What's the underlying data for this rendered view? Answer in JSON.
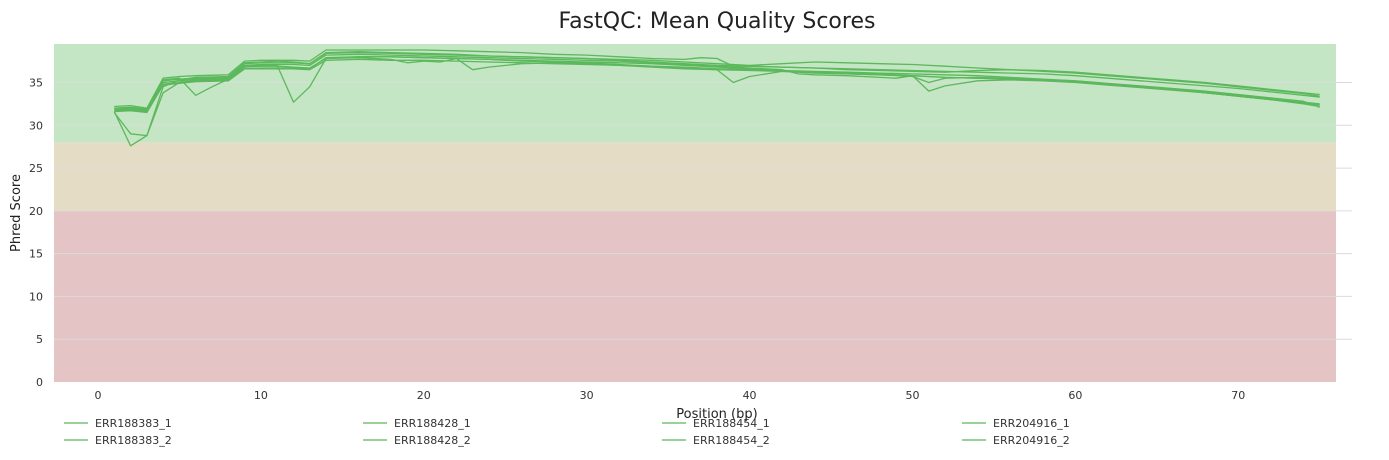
{
  "chart_data": {
    "type": "line",
    "title": "FastQC: Mean Quality Scores",
    "xlabel": "Position (bp)",
    "ylabel": "Phred Score",
    "xlim": [
      -2.7,
      76
    ],
    "ylim": [
      0,
      39.5
    ],
    "xticks": [
      0,
      10,
      20,
      30,
      40,
      50,
      60,
      70
    ],
    "yticks": [
      0,
      5,
      10,
      15,
      20,
      25,
      30,
      35
    ],
    "grid": true,
    "legend_position": "bottom",
    "line_color": "#5cb85c",
    "bands": [
      {
        "from": 28,
        "to": 39.5,
        "color": "#c4e6c4"
      },
      {
        "from": 20,
        "to": 28,
        "color": "#e4dcc4"
      },
      {
        "from": 0,
        "to": 20,
        "color": "#e4c4c4"
      }
    ],
    "series": [
      {
        "name": "ERR188383_1",
        "x": [
          1,
          2,
          3,
          4,
          5,
          6,
          8,
          9,
          10,
          11,
          12,
          13,
          14,
          16,
          18,
          20,
          22,
          24,
          26,
          28,
          30,
          32,
          34,
          36,
          38,
          40,
          42,
          44,
          46,
          48,
          50,
          52,
          54,
          56,
          58,
          60,
          62,
          64,
          66,
          68,
          70,
          72,
          74,
          75
        ],
        "y": [
          31.5,
          29.0,
          28.8,
          34.5,
          35.3,
          35.6,
          35.7,
          37.3,
          37.4,
          37.5,
          37.4,
          37.2,
          38.5,
          38.6,
          38.5,
          38.4,
          38.3,
          38.1,
          38.0,
          37.9,
          37.8,
          37.6,
          37.4,
          37.2,
          37.0,
          36.9,
          36.8,
          36.7,
          36.6,
          36.5,
          36.4,
          36.3,
          36.2,
          36.1,
          36.0,
          35.8,
          35.5,
          35.2,
          34.9,
          34.6,
          34.3,
          33.9,
          33.5,
          33.3
        ]
      },
      {
        "name": "ERR188383_2",
        "x": [
          1,
          2,
          3,
          4,
          5,
          6,
          8,
          9,
          10,
          11,
          12,
          13,
          14,
          16,
          18,
          20,
          22,
          24,
          26,
          28,
          30,
          32,
          34,
          36,
          38,
          39,
          40,
          42,
          44,
          46,
          48,
          50,
          52,
          54,
          56,
          58,
          60,
          62,
          64,
          66,
          68,
          70,
          72,
          74,
          75
        ],
        "y": [
          31.6,
          27.6,
          28.8,
          33.8,
          35.0,
          35.3,
          35.4,
          36.8,
          36.9,
          36.9,
          36.8,
          36.7,
          37.8,
          38.0,
          38.0,
          37.9,
          37.8,
          37.7,
          37.5,
          37.4,
          37.3,
          37.1,
          36.9,
          36.7,
          36.5,
          35.0,
          35.7,
          36.3,
          36.2,
          36.1,
          36.0,
          35.8,
          35.6,
          35.5,
          35.4,
          35.3,
          35.1,
          34.8,
          34.5,
          34.2,
          33.8,
          33.4,
          33.0,
          32.6,
          32.4
        ]
      },
      {
        "name": "ERR188428_1",
        "x": [
          1,
          2,
          3,
          4,
          5,
          6,
          7,
          8,
          9,
          10,
          11,
          12,
          13,
          14,
          16,
          18,
          19,
          20,
          21,
          22,
          23,
          24,
          26,
          28,
          30,
          32,
          34,
          36,
          38,
          40,
          42,
          44,
          46,
          48,
          50,
          52,
          54,
          56,
          58,
          60,
          62,
          64,
          66,
          68,
          70,
          72,
          74,
          75
        ],
        "y": [
          32.0,
          32.1,
          31.9,
          35.3,
          35.5,
          33.5,
          34.5,
          35.4,
          36.9,
          37.0,
          37.0,
          32.7,
          34.5,
          37.8,
          37.9,
          37.7,
          37.3,
          37.5,
          37.4,
          37.8,
          36.5,
          36.8,
          37.2,
          37.3,
          37.2,
          37.0,
          36.8,
          36.6,
          36.5,
          36.4,
          36.3,
          36.2,
          36.0,
          35.9,
          35.8,
          35.6,
          35.5,
          35.4,
          35.3,
          35.1,
          34.8,
          34.5,
          34.2,
          33.9,
          33.5,
          33.1,
          32.7,
          32.5
        ]
      },
      {
        "name": "ERR188428_2",
        "x": [
          1,
          2,
          3,
          4,
          5,
          6,
          8,
          9,
          10,
          12,
          13,
          14,
          16,
          18,
          20,
          22,
          24,
          26,
          28,
          30,
          32,
          34,
          36,
          38,
          40,
          42,
          43,
          44,
          46,
          48,
          49,
          50,
          51,
          52,
          54,
          56,
          58,
          60,
          62,
          64,
          66,
          68,
          70,
          72,
          74,
          75
        ],
        "y": [
          31.8,
          31.9,
          31.7,
          35.0,
          35.2,
          35.4,
          35.5,
          37.0,
          37.1,
          37.1,
          37.0,
          38.2,
          38.3,
          38.2,
          38.1,
          38.0,
          37.9,
          37.8,
          37.7,
          37.6,
          37.5,
          37.3,
          37.1,
          36.9,
          36.7,
          36.5,
          36.0,
          35.9,
          35.8,
          35.6,
          35.5,
          35.8,
          34.0,
          34.6,
          35.2,
          35.3,
          35.2,
          35.0,
          34.7,
          34.4,
          34.1,
          33.8,
          33.4,
          33.0,
          32.5,
          32.2
        ]
      },
      {
        "name": "ERR188454_1",
        "x": [
          1,
          2,
          3,
          4,
          5,
          6,
          8,
          9,
          10,
          12,
          13,
          14,
          16,
          18,
          20,
          22,
          24,
          26,
          28,
          30,
          32,
          34,
          36,
          37,
          38,
          39,
          40,
          42,
          44,
          46,
          48,
          50,
          52,
          54,
          56,
          58,
          60,
          62,
          64,
          66,
          68,
          70,
          72,
          74,
          75
        ],
        "y": [
          32.2,
          32.3,
          32.0,
          35.5,
          35.7,
          35.8,
          35.9,
          37.5,
          37.6,
          37.6,
          37.5,
          38.8,
          38.8,
          38.8,
          38.8,
          38.7,
          38.6,
          38.5,
          38.3,
          38.2,
          38.0,
          37.8,
          37.7,
          37.9,
          37.8,
          36.9,
          36.9,
          36.8,
          36.7,
          36.5,
          36.4,
          36.3,
          36.2,
          36.4,
          36.5,
          36.4,
          36.2,
          35.9,
          35.6,
          35.3,
          35.0,
          34.6,
          34.2,
          33.8,
          33.6
        ]
      },
      {
        "name": "ERR188454_2",
        "x": [
          1,
          2,
          3,
          4,
          5,
          6,
          8,
          9,
          10,
          12,
          13,
          14,
          16,
          18,
          20,
          22,
          24,
          26,
          28,
          30,
          32,
          34,
          36,
          38,
          40,
          42,
          44,
          46,
          48,
          50,
          52,
          54,
          56,
          58,
          60,
          62,
          64,
          66,
          68,
          70,
          72,
          74,
          75
        ],
        "y": [
          31.9,
          32.0,
          31.8,
          35.2,
          35.4,
          35.5,
          35.6,
          37.2,
          37.3,
          37.3,
          37.2,
          38.4,
          38.5,
          38.4,
          38.3,
          38.2,
          38.1,
          38.0,
          37.9,
          37.8,
          37.7,
          37.6,
          37.4,
          37.2,
          37.0,
          37.2,
          37.4,
          37.3,
          37.2,
          37.1,
          36.9,
          36.7,
          36.5,
          36.3,
          36.1,
          35.8,
          35.5,
          35.2,
          34.9,
          34.5,
          34.1,
          33.7,
          33.4
        ]
      },
      {
        "name": "ERR204916_1",
        "x": [
          1,
          2,
          3,
          4,
          5,
          6,
          8,
          9,
          10,
          12,
          13,
          14,
          16,
          18,
          20,
          22,
          24,
          26,
          28,
          30,
          32,
          34,
          36,
          38,
          40,
          42,
          44,
          46,
          48,
          50,
          51,
          52,
          54,
          56,
          58,
          60,
          62,
          64,
          66,
          68,
          70,
          72,
          74,
          75
        ],
        "y": [
          31.7,
          31.8,
          31.6,
          34.8,
          35.0,
          35.2,
          35.3,
          36.6,
          36.6,
          36.6,
          36.5,
          37.6,
          37.7,
          37.6,
          37.6,
          37.5,
          37.4,
          37.3,
          37.2,
          37.1,
          37.0,
          36.9,
          36.8,
          36.6,
          36.5,
          36.3,
          36.1,
          36.0,
          35.9,
          35.7,
          35.0,
          35.5,
          35.6,
          35.5,
          35.3,
          35.1,
          34.8,
          34.5,
          34.2,
          33.8,
          33.4,
          33.0,
          32.6,
          32.4
        ]
      },
      {
        "name": "ERR204916_2",
        "x": [
          1,
          2,
          3,
          4,
          5,
          6,
          8,
          9,
          10,
          12,
          13,
          14,
          16,
          18,
          20,
          22,
          24,
          26,
          28,
          30,
          32,
          34,
          36,
          38,
          40,
          42,
          44,
          46,
          48,
          50,
          52,
          54,
          56,
          58,
          60,
          62,
          64,
          66,
          68,
          70,
          72,
          74,
          75
        ],
        "y": [
          31.6,
          31.7,
          31.5,
          34.7,
          34.9,
          35.1,
          35.2,
          36.6,
          36.7,
          36.7,
          36.6,
          37.9,
          38.0,
          38.0,
          37.9,
          37.8,
          37.7,
          37.6,
          37.5,
          37.4,
          37.3,
          37.2,
          37.0,
          36.8,
          36.6,
          36.4,
          36.3,
          36.2,
          36.1,
          36.0,
          35.9,
          35.8,
          35.6,
          35.4,
          35.2,
          34.9,
          34.6,
          34.3,
          34.0,
          33.6,
          33.2,
          32.8,
          32.1
        ]
      }
    ]
  }
}
